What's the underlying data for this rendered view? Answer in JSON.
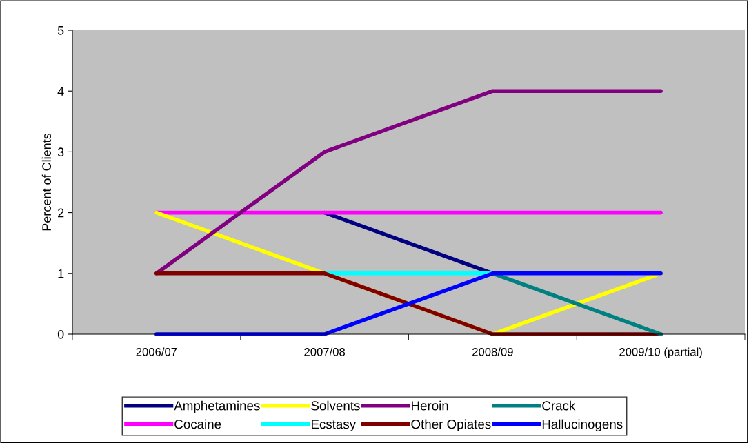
{
  "chart_data": {
    "type": "line",
    "ylabel": "Percent of Clients",
    "categories": [
      "2006/07",
      "2007/08",
      "2008/09",
      "2009/10 (partial)"
    ],
    "series": [
      {
        "name": "Amphetamines",
        "color": "#000080",
        "values": [
          null,
          2,
          1,
          null
        ]
      },
      {
        "name": "Cocaine",
        "color": "#ff00ff",
        "values": [
          2,
          2,
          2,
          2
        ]
      },
      {
        "name": "Solvents",
        "color": "#ffff00",
        "values": [
          2,
          1,
          0,
          1
        ]
      },
      {
        "name": "Ecstasy",
        "color": "#00ffff",
        "values": [
          null,
          1,
          1,
          null
        ]
      },
      {
        "name": "Heroin",
        "color": "#800080",
        "values": [
          1,
          3,
          4,
          4
        ]
      },
      {
        "name": "Other Opiates",
        "color": "#800000",
        "values": [
          1,
          1,
          0,
          0
        ]
      },
      {
        "name": "Crack",
        "color": "#008080",
        "values": [
          null,
          null,
          1,
          0
        ]
      },
      {
        "name": "Hallucinogens",
        "color": "#0000ff",
        "values": [
          0,
          0,
          1,
          1
        ]
      }
    ],
    "ylim": [
      0,
      5
    ],
    "yticks": [
      0,
      1,
      2,
      3,
      4,
      5
    ],
    "grid": false,
    "legend": "bottom",
    "marker": "none",
    "line_style": "solid"
  }
}
